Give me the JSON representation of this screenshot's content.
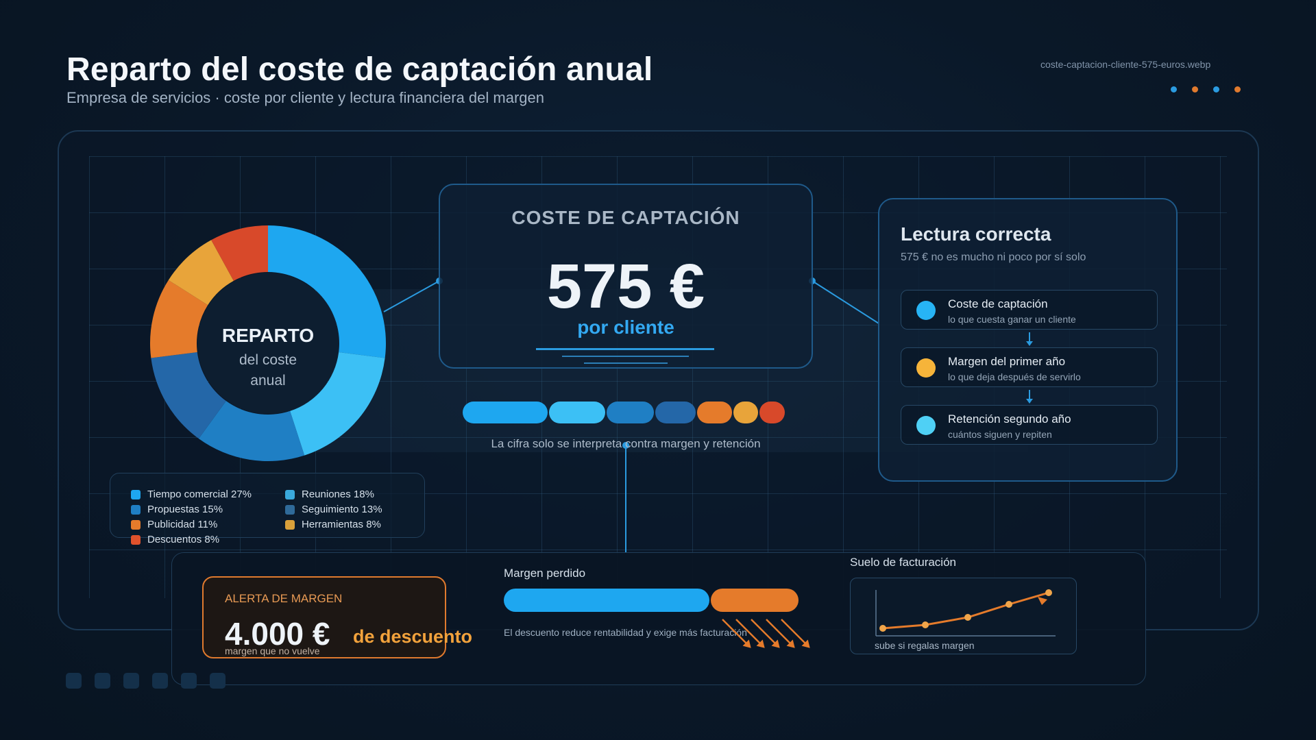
{
  "header": {
    "title": "Reparto del coste de captación anual",
    "subtitle": "Empresa de servicios · coste por cliente y lectura financiera del margen",
    "file_label": "coste-captacion-cliente-575-euros.webp",
    "dot_colors": [
      "#2b9be0",
      "#e07a2e",
      "#2b9be0",
      "#e07a2e"
    ]
  },
  "donut": {
    "title": "REPARTO",
    "line2": "del coste",
    "line3": "anual",
    "segments": [
      {
        "label": "Tiempo comercial",
        "value": 27,
        "color": "#1ea7f0"
      },
      {
        "label": "Reuniones",
        "value": 18,
        "color": "#3cc0f5"
      },
      {
        "label": "Propuestas",
        "value": 15,
        "color": "#1f7fc4"
      },
      {
        "label": "Seguimiento",
        "value": 13,
        "color": "#2467a8"
      },
      {
        "label": "Publicidad",
        "value": 11,
        "color": "#e57b2b"
      },
      {
        "label": "Herramientas",
        "value": 8,
        "color": "#e8a43a"
      },
      {
        "label": "Descuentos",
        "value": 8,
        "color": "#d8492a"
      }
    ]
  },
  "legend": {
    "items": [
      {
        "text": "Tiempo comercial 27%",
        "color": "#1ea7f0"
      },
      {
        "text": "Reuniones 18%",
        "color": "#3aa9dc"
      },
      {
        "text": "Propuestas 15%",
        "color": "#1f7fc4"
      },
      {
        "text": "Seguimiento 13%",
        "color": "#2f6a99"
      },
      {
        "text": "Publicidad 11%",
        "color": "#e57b2b"
      },
      {
        "text": "Herramientas 8%",
        "color": "#d9a03a"
      },
      {
        "text": "Descuentos 8%",
        "color": "#e0522c"
      }
    ]
  },
  "cost_card": {
    "heading": "COSTE DE CAPTACIÓN",
    "value": "575 €",
    "sub": "por cliente",
    "note": "La cifra solo se interpreta contra margen y retención"
  },
  "reading": {
    "title": "Lectura correcta",
    "subtitle": "575 € no es mucho ni poco por sí solo",
    "items": [
      {
        "title": "Coste de captación",
        "sub": "lo que cuesta ganar un cliente",
        "color": "#27b4f5"
      },
      {
        "title": "Margen del primer año",
        "sub": "lo que deja después de servirlo",
        "color": "#f6b43a"
      },
      {
        "title": "Retención segundo año",
        "sub": "cuántos siguen y repiten",
        "color": "#4fd0f5"
      }
    ]
  },
  "alert": {
    "heading": "ALERTA DE MARGEN",
    "value": "4.000 €",
    "desc": "de descuento",
    "note": "margen que no vuelve"
  },
  "margin_lost": {
    "label": "Margen perdido",
    "note": "El descuento reduce rentabilidad y exige más facturación",
    "kept_fraction": 0.7,
    "lost_fraction": 0.3
  },
  "floor": {
    "label": "Suelo de facturación",
    "note": "sube si regalas margen"
  }
}
